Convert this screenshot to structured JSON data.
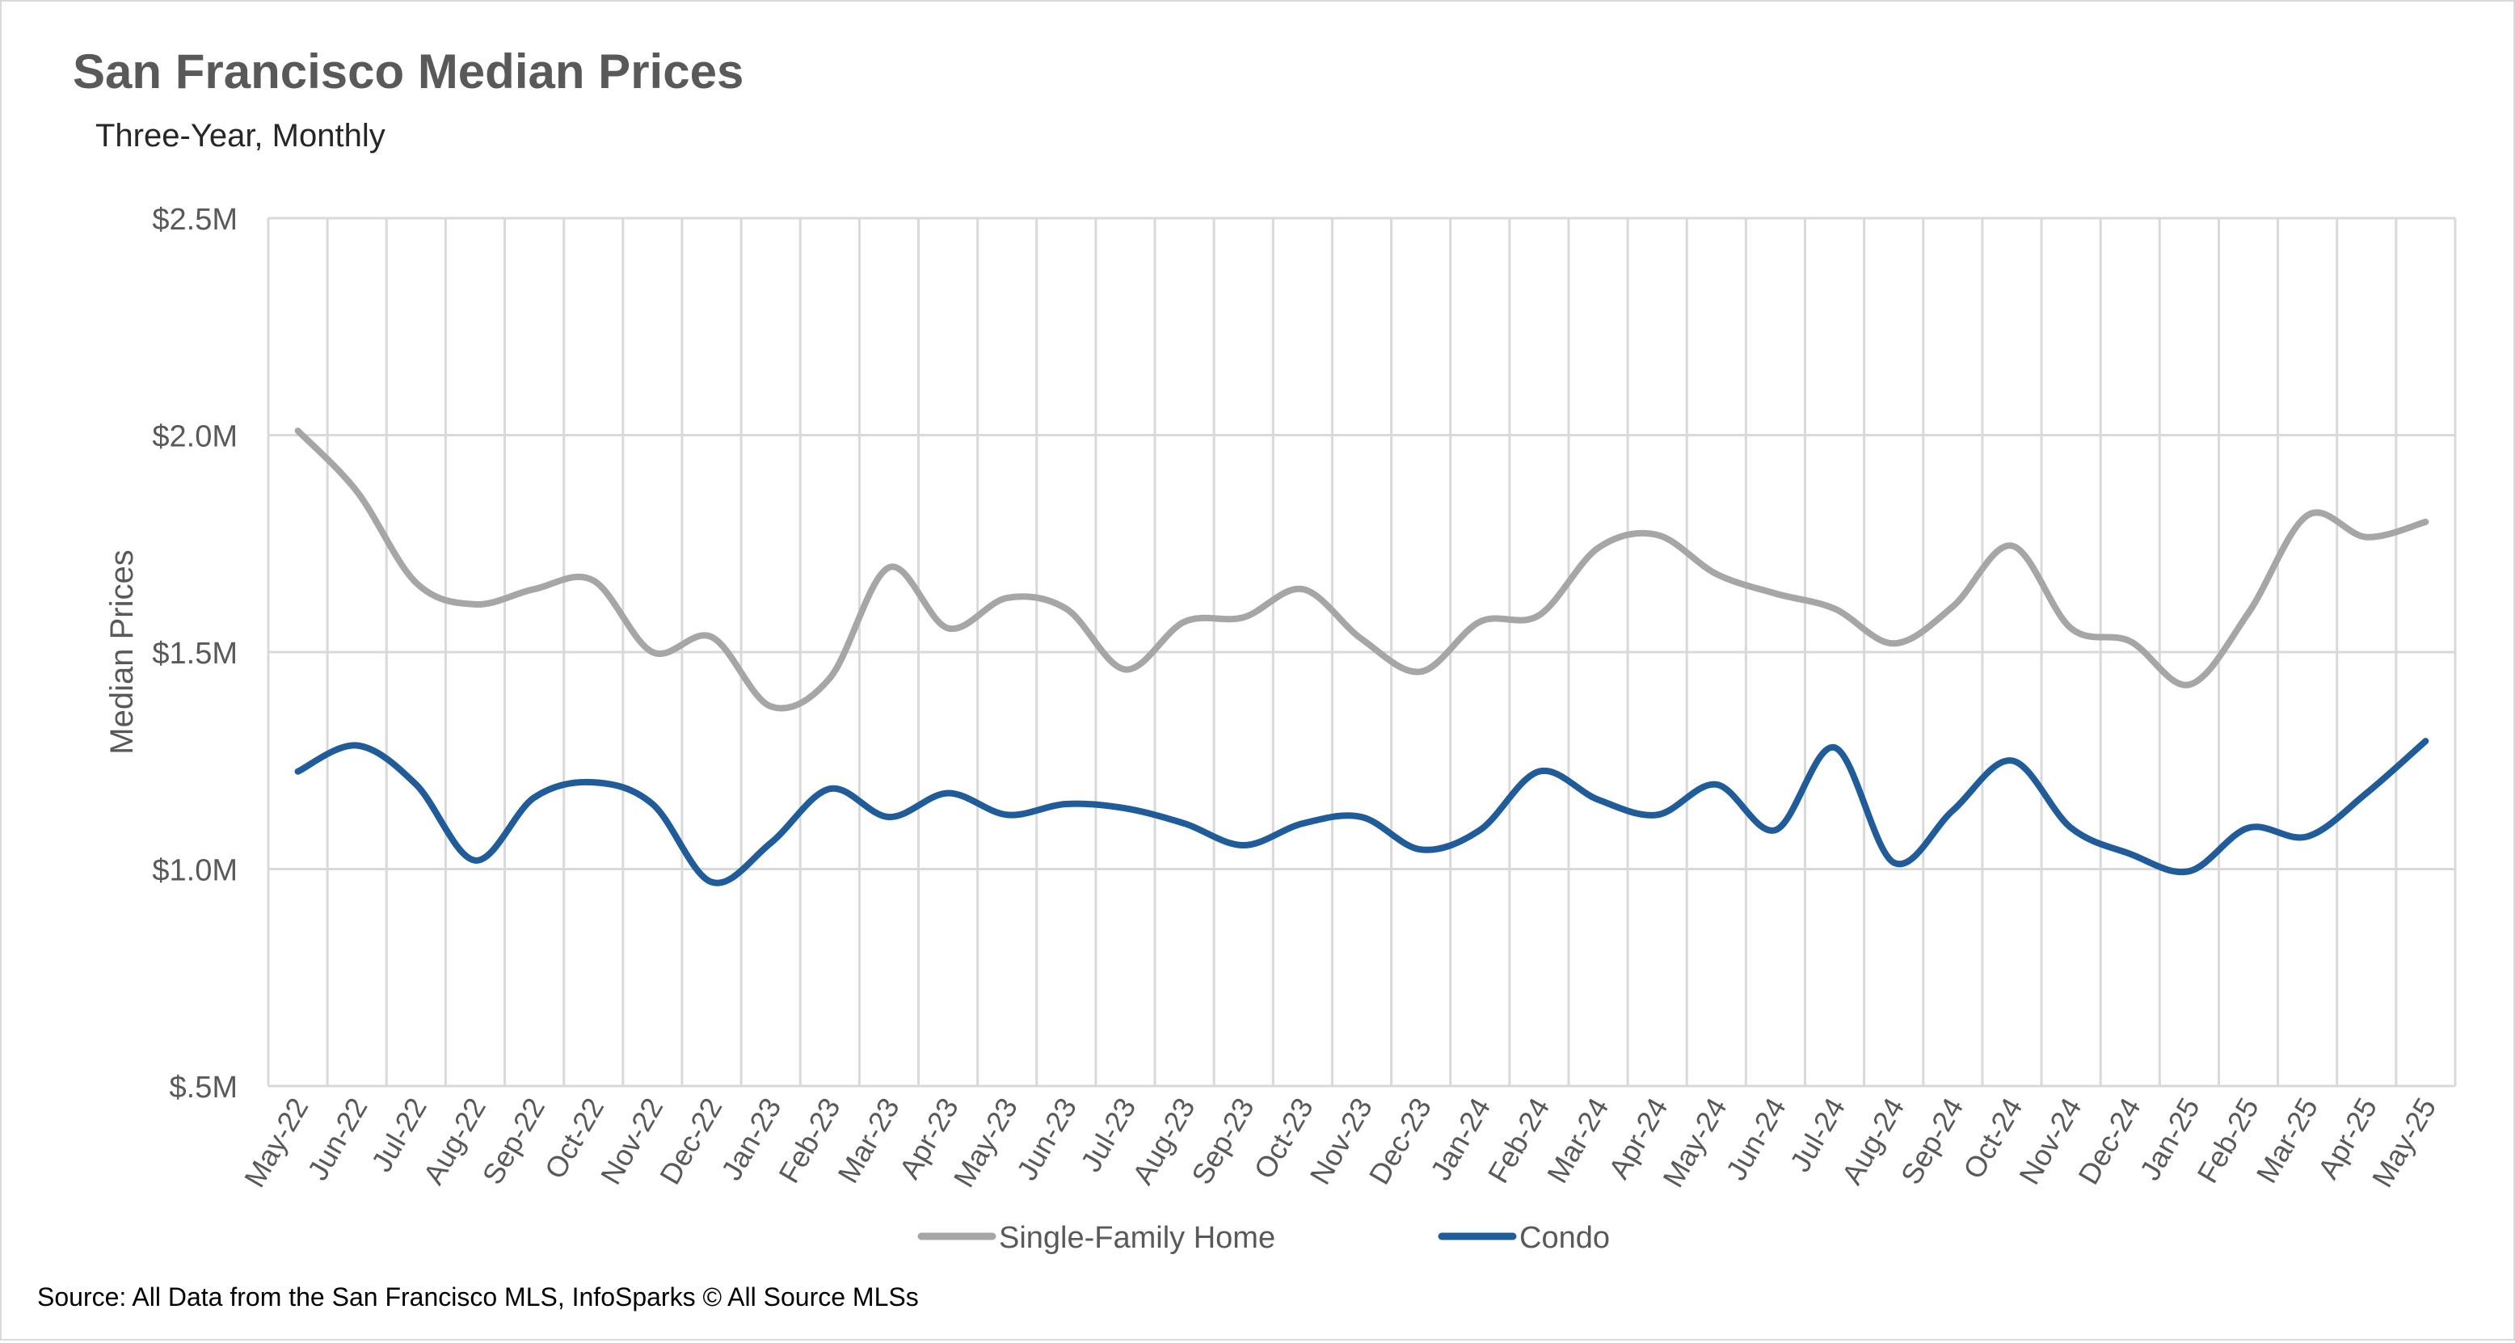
{
  "chart_data": {
    "type": "line",
    "title": "San Francisco Median Prices",
    "subtitle": "Three-Year, Monthly",
    "xlabel": "",
    "ylabel": "Median Prices",
    "ylim": [
      500000,
      2500000
    ],
    "yticks": [
      500000,
      1000000,
      1500000,
      2000000,
      2500000
    ],
    "ytick_labels": [
      "$.5M",
      "$1.0M",
      "$1.5M",
      "$2.0M",
      "$2.5M"
    ],
    "grid": true,
    "legend_position": "bottom",
    "categories": [
      "May-22",
      "Jun-22",
      "Jul-22",
      "Aug-22",
      "Sep-22",
      "Oct-22",
      "Nov-22",
      "Dec-22",
      "Jan-23",
      "Feb-23",
      "Mar-23",
      "Apr-23",
      "May-23",
      "Jun-23",
      "Jul-23",
      "Aug-23",
      "Sep-23",
      "Oct-23",
      "Nov-23",
      "Dec-23",
      "Jan-24",
      "Feb-24",
      "Mar-24",
      "Apr-24",
      "May-24",
      "Jun-24",
      "Jul-24",
      "Aug-24",
      "Sep-24",
      "Oct-24",
      "Nov-24",
      "Dec-24",
      "Jan-25",
      "Feb-25",
      "Mar-25",
      "Apr-25",
      "May-25"
    ],
    "series": [
      {
        "name": "Single-Family Home",
        "color": "#a6a6a6",
        "values": [
          2010000,
          1870000,
          1660000,
          1610000,
          1645000,
          1665000,
          1500000,
          1535000,
          1375000,
          1440000,
          1695000,
          1555000,
          1625000,
          1600000,
          1460000,
          1570000,
          1580000,
          1645000,
          1530000,
          1455000,
          1570000,
          1585000,
          1740000,
          1770000,
          1680000,
          1635000,
          1600000,
          1520000,
          1605000,
          1745000,
          1555000,
          1525000,
          1425000,
          1590000,
          1815000,
          1765000,
          1800000
        ]
      },
      {
        "name": "Condo",
        "color": "#1f5c99",
        "values": [
          1225000,
          1285000,
          1195000,
          1020000,
          1165000,
          1200000,
          1150000,
          970000,
          1060000,
          1185000,
          1120000,
          1175000,
          1125000,
          1150000,
          1140000,
          1105000,
          1055000,
          1105000,
          1120000,
          1045000,
          1090000,
          1225000,
          1160000,
          1125000,
          1195000,
          1090000,
          1280000,
          1015000,
          1135000,
          1250000,
          1095000,
          1035000,
          995000,
          1095000,
          1075000,
          1175000,
          1295000
        ]
      }
    ]
  },
  "footer": {
    "source": "Source: All Data from the San Francisco MLS, InfoSparks © All Source MLSs"
  }
}
